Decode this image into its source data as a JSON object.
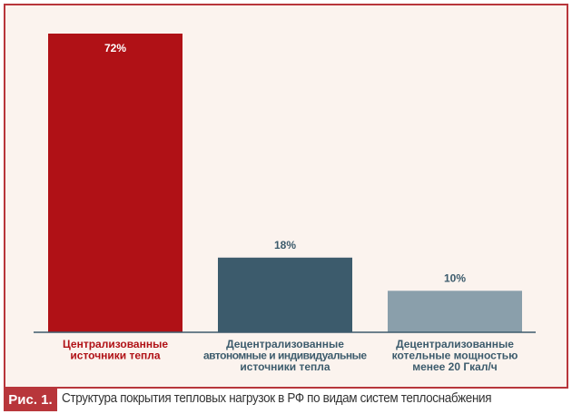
{
  "chart_data": {
    "type": "bar",
    "categories": [
      [
        "Централизованные",
        "источники тепла"
      ],
      [
        "Децентрализованные",
        "автономные и индивидуальные",
        "источники тепла"
      ],
      [
        "Децентрализованные",
        "котельные мощностью",
        "менее 20 Гкал/ч"
      ]
    ],
    "values": [
      72,
      18,
      10
    ],
    "data_labels": [
      "72%",
      "18%",
      "10%"
    ],
    "colors": [
      "#b01116",
      "#3c5b6c",
      "#8a9fab"
    ],
    "category_label_colors": [
      "#b01116",
      "#3c5b6c",
      "#3c5b6c"
    ],
    "ylim": [
      0,
      72
    ],
    "grid": false
  },
  "caption": {
    "label": "Рис. 1.",
    "text": "Структура покрытия тепловых нагрузок в РФ по видам систем теплоснабжения"
  }
}
